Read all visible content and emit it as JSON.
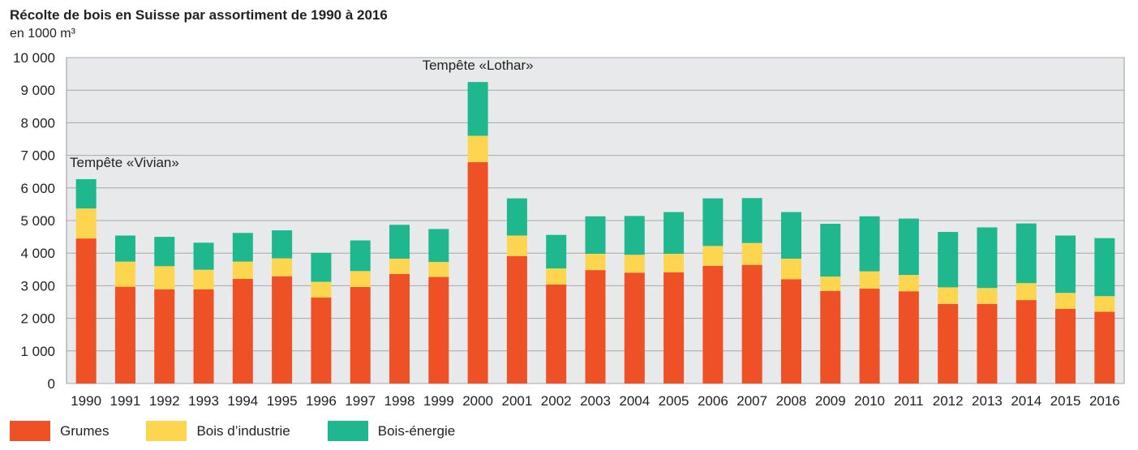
{
  "title": "Récolte de bois en Suisse par assortiment de 1990 à 2016",
  "subtitle": "en 1000 m³",
  "chart_data": {
    "type": "bar",
    "stacked": true,
    "title": "Récolte de bois en Suisse par assortiment de 1990 à 2016",
    "ylabel": "en 1000 m³",
    "ylim": [
      0,
      10000
    ],
    "yticks": [
      0,
      1000,
      2000,
      3000,
      4000,
      5000,
      6000,
      7000,
      8000,
      9000,
      10000
    ],
    "ytick_labels": [
      "0",
      "1 000",
      "2 000",
      "3 000",
      "4 000",
      "5 000",
      "6 000",
      "7 000",
      "8 000",
      "9 000",
      "10 000"
    ],
    "grid": true,
    "legend_position": "bottom-left",
    "categories": [
      "1990",
      "1991",
      "1992",
      "1993",
      "1994",
      "1995",
      "1996",
      "1997",
      "1998",
      "1999",
      "2000",
      "2001",
      "2002",
      "2003",
      "2004",
      "2005",
      "2006",
      "2007",
      "2008",
      "2009",
      "2010",
      "2011",
      "2012",
      "2013",
      "2014",
      "2015",
      "2016"
    ],
    "series": [
      {
        "name": "Grumes",
        "color": "#ee5125",
        "values": [
          4450,
          2970,
          2890,
          2890,
          3210,
          3290,
          2640,
          2960,
          3360,
          3270,
          6790,
          3910,
          3040,
          3480,
          3400,
          3410,
          3610,
          3640,
          3200,
          2840,
          2910,
          2830,
          2440,
          2440,
          2560,
          2290,
          2200
        ]
      },
      {
        "name": "Bois d’industrie",
        "color": "#fdd54f",
        "values": [
          920,
          770,
          710,
          600,
          530,
          550,
          480,
          490,
          470,
          460,
          810,
          630,
          490,
          500,
          550,
          570,
          610,
          670,
          630,
          440,
          530,
          500,
          510,
          490,
          520,
          490,
          480
        ]
      },
      {
        "name": "Bois-énergie",
        "color": "#1fb88e",
        "values": [
          900,
          800,
          900,
          830,
          880,
          860,
          890,
          940,
          1040,
          1010,
          1650,
          1140,
          1030,
          1150,
          1190,
          1280,
          1460,
          1380,
          1430,
          1620,
          1690,
          1730,
          1700,
          1860,
          1830,
          1760,
          1780
        ]
      }
    ],
    "annotations": [
      {
        "text": "Tempête «Vivian»",
        "category": "1990"
      },
      {
        "text": "Tempête «Lothar»",
        "category": "2000"
      }
    ]
  }
}
